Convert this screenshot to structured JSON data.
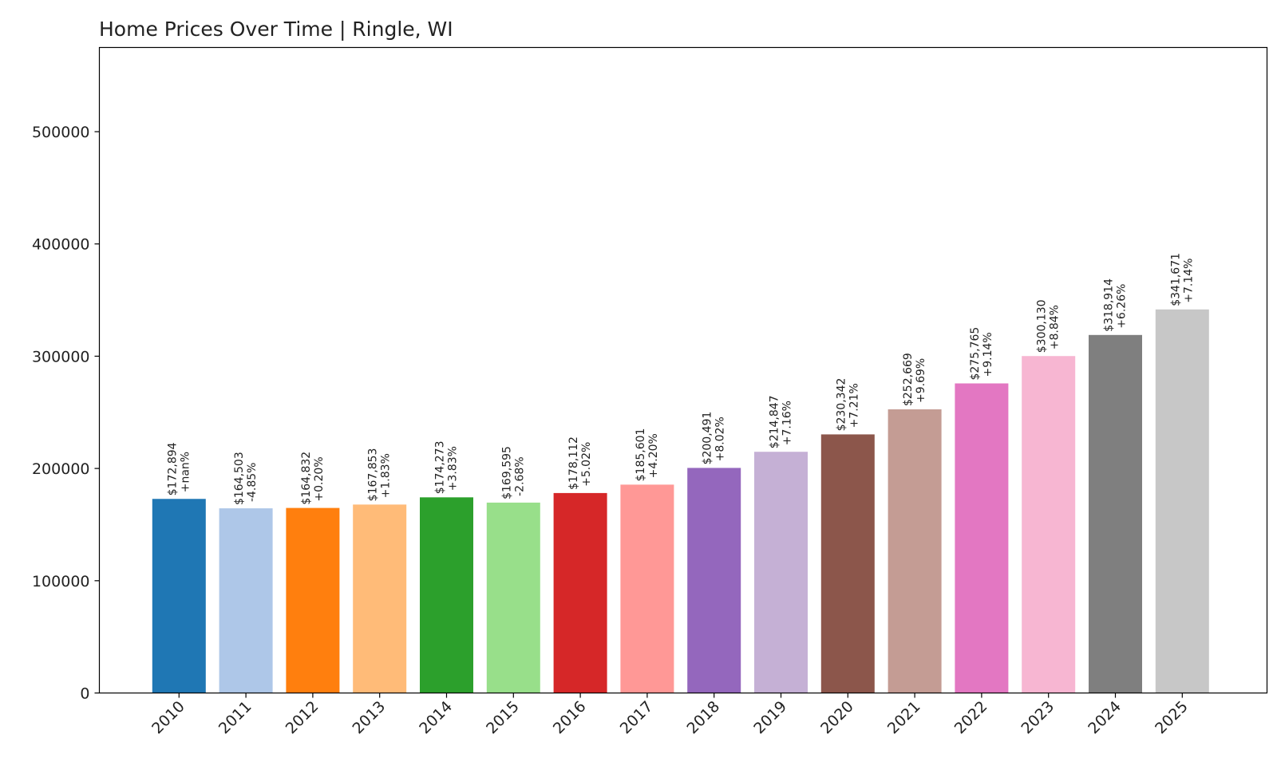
{
  "chart_data": {
    "type": "bar",
    "title": "Home Prices Over Time | Ringle, WI",
    "xlabel": "",
    "ylabel": "",
    "ylim": [
      0,
      575000
    ],
    "yticks": [
      0,
      100000,
      200000,
      300000,
      400000,
      500000
    ],
    "ytick_labels": [
      "0",
      "100000",
      "200000",
      "300000",
      "400000",
      "500000"
    ],
    "grid": false,
    "categories": [
      "2010",
      "2011",
      "2012",
      "2013",
      "2014",
      "2015",
      "2016",
      "2017",
      "2018",
      "2019",
      "2020",
      "2021",
      "2022",
      "2023",
      "2024",
      "2025"
    ],
    "values": [
      172894,
      164503,
      164832,
      167853,
      174273,
      169595,
      178112,
      185601,
      200491,
      214847,
      230342,
      252669,
      275765,
      300130,
      318914,
      341671
    ],
    "price_labels": [
      "$172,894",
      "$164,503",
      "$164,832",
      "$167,853",
      "$174,273",
      "$169,595",
      "$178,112",
      "$185,601",
      "$200,491",
      "$214,847",
      "$230,342",
      "$252,669",
      "$275,765",
      "$300,130",
      "$318,914",
      "$341,671"
    ],
    "change_labels": [
      "+nan%",
      "-4.85%",
      "+0.20%",
      "+1.83%",
      "+3.83%",
      "-2.68%",
      "+5.02%",
      "+4.20%",
      "+8.02%",
      "+7.16%",
      "+7.21%",
      "+9.69%",
      "+9.14%",
      "+8.84%",
      "+6.26%",
      "+7.14%"
    ],
    "colors": [
      "#1f77b4",
      "#aec7e8",
      "#ff7f0e",
      "#ffbb78",
      "#2ca02c",
      "#98df8a",
      "#d62728",
      "#ff9896",
      "#9467bd",
      "#c5b0d5",
      "#8c564b",
      "#c49c94",
      "#e377c2",
      "#f7b6d2",
      "#7f7f7f",
      "#c7c7c7"
    ]
  }
}
